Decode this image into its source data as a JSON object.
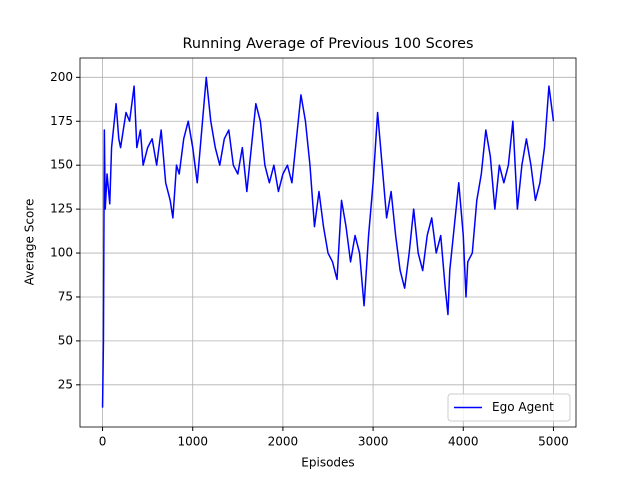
{
  "chart_data": {
    "type": "line",
    "title": "Running Average of Previous 100 Scores",
    "x_label": "Episodes",
    "y_label": "Average Score",
    "xlim": [
      -250,
      5250
    ],
    "ylim": [
      1,
      211
    ],
    "xticks": [
      0,
      1000,
      2000,
      3000,
      4000,
      5000
    ],
    "yticks": [
      25,
      50,
      75,
      100,
      125,
      150,
      175,
      200
    ],
    "grid": true,
    "legend": "lower right",
    "x": [
      0,
      10,
      20,
      30,
      50,
      80,
      100,
      130,
      150,
      180,
      200,
      230,
      260,
      300,
      350,
      380,
      420,
      450,
      500,
      550,
      600,
      650,
      700,
      750,
      780,
      820,
      850,
      900,
      950,
      1000,
      1050,
      1100,
      1150,
      1200,
      1250,
      1300,
      1350,
      1400,
      1450,
      1500,
      1550,
      1600,
      1650,
      1700,
      1750,
      1800,
      1850,
      1900,
      1950,
      2000,
      2050,
      2100,
      2150,
      2200,
      2250,
      2300,
      2350,
      2400,
      2450,
      2500,
      2550,
      2600,
      2650,
      2700,
      2750,
      2800,
      2850,
      2900,
      2950,
      3000,
      3050,
      3100,
      3150,
      3200,
      3250,
      3300,
      3350,
      3400,
      3450,
      3500,
      3550,
      3600,
      3650,
      3700,
      3750,
      3800,
      3830,
      3850,
      3900,
      3950,
      4000,
      4030,
      4050,
      4100,
      4150,
      4200,
      4250,
      4300,
      4350,
      4400,
      4450,
      4500,
      4550,
      4600,
      4650,
      4700,
      4750,
      4800,
      4850,
      4900,
      4950,
      5000
    ],
    "series": [
      {
        "name": "Ego Agent",
        "color": "#0000ff",
        "values": [
          12,
          50,
          170,
          125,
          145,
          128,
          160,
          175,
          185,
          165,
          160,
          170,
          180,
          175,
          195,
          160,
          170,
          150,
          160,
          165,
          150,
          170,
          140,
          130,
          120,
          150,
          145,
          165,
          175,
          160,
          140,
          170,
          200,
          175,
          160,
          150,
          165,
          170,
          150,
          145,
          160,
          135,
          160,
          185,
          175,
          150,
          140,
          150,
          135,
          145,
          150,
          140,
          165,
          190,
          175,
          150,
          115,
          135,
          115,
          100,
          95,
          85,
          130,
          115,
          95,
          110,
          100,
          70,
          110,
          140,
          180,
          150,
          120,
          135,
          110,
          90,
          80,
          100,
          125,
          100,
          90,
          110,
          120,
          100,
          110,
          80,
          65,
          90,
          115,
          140,
          110,
          75,
          95,
          100,
          130,
          145,
          170,
          155,
          125,
          150,
          140,
          150,
          175,
          125,
          150,
          165,
          150,
          130,
          140,
          160,
          195,
          175
        ]
      }
    ]
  }
}
